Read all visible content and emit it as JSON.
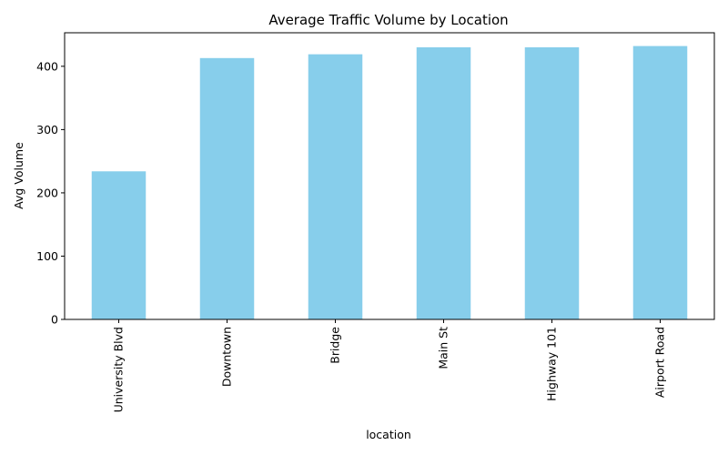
{
  "chart_data": {
    "type": "bar",
    "title": "Average Traffic Volume by Location",
    "xlabel": "location",
    "ylabel": "Avg Volume",
    "categories": [
      "University Blvd",
      "Downtown",
      "Bridge",
      "Main St",
      "Highway 101",
      "Airport Road"
    ],
    "values": [
      234,
      413,
      419,
      430,
      430,
      432
    ],
    "ylim": [
      0,
      453
    ],
    "yticks": [
      0,
      100,
      200,
      300,
      400
    ],
    "ytick_labels": [
      "0",
      "100",
      "200",
      "300",
      "400"
    ],
    "grid": false,
    "legend": "none",
    "bar_color": "#87ceeb",
    "xtick_rotation": "vertical"
  }
}
